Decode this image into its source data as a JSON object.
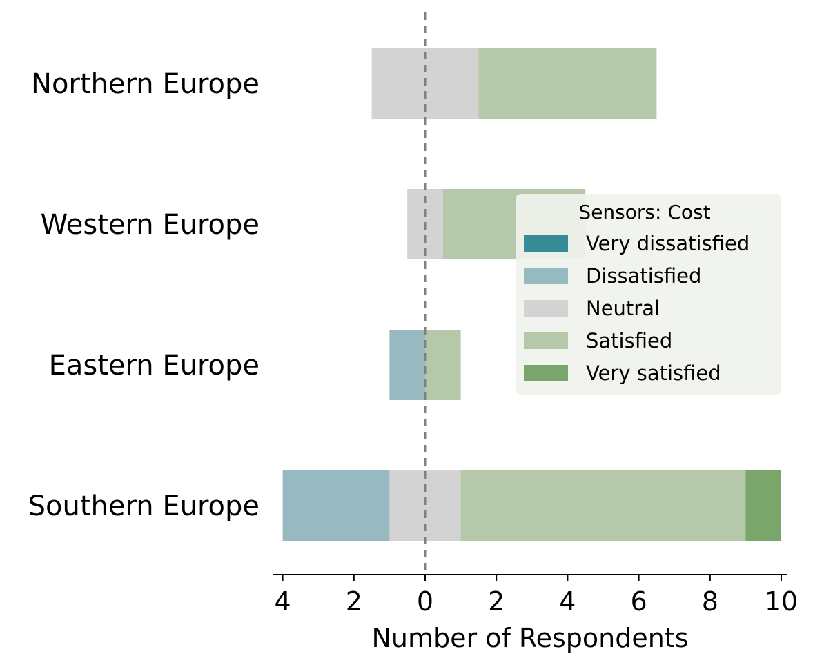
{
  "chart_data": {
    "type": "bar",
    "orientation": "horizontal-diverging",
    "categories": [
      "Northern Europe",
      "Western Europe",
      "Eastern Europe",
      "Southern Europe"
    ],
    "series": [
      {
        "name": "Very dissatisfied",
        "color": "#368c96",
        "values": [
          0,
          0,
          0,
          0
        ]
      },
      {
        "name": "Dissatisfied",
        "color": "#97bac1",
        "values": [
          0,
          0,
          1,
          3
        ]
      },
      {
        "name": "Neutral",
        "color": "#d3d3d3",
        "values": [
          3,
          1,
          0,
          2
        ]
      },
      {
        "name": "Satisfied",
        "color": "#b5c9aa",
        "values": [
          5,
          4,
          1,
          8
        ]
      },
      {
        "name": "Very satisfied",
        "color": "#7ba66b",
        "values": [
          0,
          0,
          0,
          1
        ]
      }
    ],
    "xlabel": "Number of Respondents",
    "xlim": [
      -4.3,
      10.1
    ],
    "xticks": [
      -4,
      -2,
      0,
      2,
      4,
      6,
      8,
      10
    ],
    "xtick_labels": [
      "4",
      "2",
      "0",
      "2",
      "4",
      "6",
      "8",
      "10"
    ],
    "legend": {
      "title": "Sensors: Cost",
      "placement": "right"
    },
    "zero_line": "dashed"
  }
}
